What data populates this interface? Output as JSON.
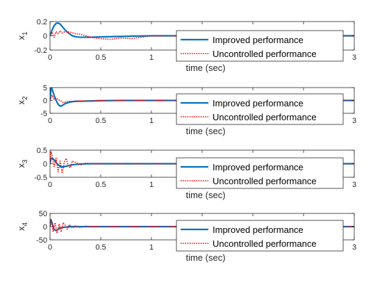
{
  "chart_data": [
    {
      "type": "line",
      "ylabel_base": "x",
      "ylabel_sub": "1",
      "xlabel": "time (sec)",
      "xlim": [
        0,
        3
      ],
      "ylim": [
        -0.2,
        0.2
      ],
      "xticks": [
        0,
        0.5,
        1,
        1.5,
        2,
        2.5,
        3
      ],
      "xtick_labels": [
        "0",
        "0.5",
        "1",
        "",
        "",
        "",
        "3"
      ],
      "yticks": [
        -0.2,
        0,
        0.2
      ],
      "ytick_labels": [
        "-0.2",
        "0",
        "0.2"
      ],
      "legend": {
        "location": "bottom-right",
        "entries": [
          "Improved performance",
          "Uncontrolled performance"
        ]
      },
      "series": [
        {
          "name": "Improved performance",
          "color": "#0072bd",
          "style": "solid",
          "x": [
            0,
            0.02,
            0.04,
            0.06,
            0.08,
            0.1,
            0.12,
            0.15,
            0.18,
            0.22,
            0.26,
            0.3,
            0.35,
            0.4,
            0.5,
            0.6,
            0.8,
            1.0,
            1.5,
            3
          ],
          "y": [
            0,
            0.08,
            0.14,
            0.175,
            0.18,
            0.165,
            0.13,
            0.08,
            0.04,
            0.0,
            -0.015,
            -0.02,
            -0.02,
            -0.02,
            -0.015,
            -0.012,
            -0.005,
            0.0,
            0.0,
            0.0
          ]
        },
        {
          "name": "Uncontrolled performance",
          "color": "#ff0000",
          "style": "dotted",
          "x": [
            0,
            0.02,
            0.04,
            0.06,
            0.08,
            0.1,
            0.12,
            0.15,
            0.2,
            0.25,
            0.3,
            0.35,
            0.4,
            0.5,
            0.6,
            0.7,
            0.8,
            0.9,
            1.0,
            1.5,
            3
          ],
          "y": [
            0,
            0.05,
            -0.02,
            0.06,
            0.03,
            0.07,
            0.04,
            0.06,
            0.05,
            0.03,
            0.02,
            0.0,
            -0.02,
            -0.04,
            -0.05,
            -0.03,
            -0.04,
            -0.02,
            0.0,
            0.0,
            0.0
          ]
        }
      ]
    },
    {
      "type": "line",
      "ylabel_base": "x",
      "ylabel_sub": "2",
      "xlabel": "time (sec)",
      "xlim": [
        0,
        3
      ],
      "ylim": [
        -5,
        5
      ],
      "xticks": [
        0,
        0.5,
        1,
        1.5,
        2,
        2.5,
        3
      ],
      "xtick_labels": [
        "0",
        "0.5",
        "1",
        "",
        "",
        "",
        "3"
      ],
      "yticks": [
        -5,
        0,
        5
      ],
      "ytick_labels": [
        "-5",
        "0",
        "5"
      ],
      "legend": {
        "location": "bottom-right",
        "entries": [
          "Improved performance",
          "Uncontrolled performance"
        ]
      },
      "series": [
        {
          "name": "Improved performance",
          "color": "#0072bd",
          "style": "solid",
          "x": [
            0,
            0.01,
            0.02,
            0.04,
            0.06,
            0.08,
            0.1,
            0.12,
            0.15,
            0.2,
            0.25,
            0.3,
            0.4,
            0.5,
            0.7,
            1.0,
            3
          ],
          "y": [
            0,
            4.8,
            4.5,
            2.0,
            0.0,
            -1.5,
            -2.2,
            -2.0,
            -1.2,
            -0.6,
            -0.3,
            -0.3,
            -0.2,
            -0.1,
            0.0,
            0.0,
            0.0
          ]
        },
        {
          "name": "Uncontrolled performance",
          "color": "#ff0000",
          "style": "dotted",
          "x": [
            0,
            0.02,
            0.04,
            0.06,
            0.08,
            0.1,
            0.13,
            0.16,
            0.2,
            0.25,
            0.3,
            0.4,
            0.5,
            0.7,
            1.0,
            3
          ],
          "y": [
            0,
            2.0,
            0.5,
            1.0,
            0.3,
            0.0,
            -0.8,
            -0.5,
            -0.3,
            -0.4,
            -0.2,
            -0.1,
            0.0,
            0.0,
            0.0,
            0.0
          ]
        }
      ]
    },
    {
      "type": "line",
      "ylabel_base": "x",
      "ylabel_sub": "3",
      "xlabel": "time (sec)",
      "xlim": [
        0,
        3
      ],
      "ylim": [
        -0.5,
        0.5
      ],
      "xticks": [
        0,
        0.5,
        1,
        1.5,
        2,
        2.5,
        3
      ],
      "xtick_labels": [
        "0",
        "0.5",
        "1",
        "",
        "",
        "",
        "3"
      ],
      "yticks": [
        -0.5,
        0,
        0.5
      ],
      "ytick_labels": [
        "-0.5",
        "0",
        "0.5"
      ],
      "legend": {
        "location": "bottom-right",
        "entries": [
          "Improved performance",
          "Uncontrolled performance"
        ]
      },
      "series": [
        {
          "name": "Improved performance",
          "color": "#0072bd",
          "style": "solid",
          "x": [
            0,
            0.01,
            0.03,
            0.05,
            0.07,
            0.1,
            0.13,
            0.17,
            0.22,
            0.3,
            0.4,
            0.6,
            1.0,
            3
          ],
          "y": [
            0,
            0.2,
            0.18,
            0.1,
            0.0,
            -0.1,
            -0.12,
            -0.08,
            -0.04,
            -0.01,
            0.0,
            0.0,
            0.0,
            0.0
          ]
        },
        {
          "name": "Uncontrolled performance",
          "color": "#ff0000",
          "style": "dotted",
          "x": [
            0,
            0.01,
            0.02,
            0.04,
            0.06,
            0.08,
            0.1,
            0.12,
            0.14,
            0.16,
            0.18,
            0.2,
            0.22,
            0.25,
            0.3,
            0.35,
            0.4,
            0.5,
            1.0,
            3
          ],
          "y": [
            0,
            0.45,
            0.3,
            -0.1,
            0.2,
            -0.3,
            0.1,
            -0.35,
            0.05,
            0.2,
            -0.1,
            -0.15,
            0.1,
            0.05,
            -0.05,
            0.02,
            0.0,
            0.0,
            0.0,
            0.0
          ]
        }
      ]
    },
    {
      "type": "line",
      "ylabel_base": "x",
      "ylabel_sub": "4",
      "xlabel": "time (sec)",
      "xlim": [
        0,
        3
      ],
      "ylim": [
        -50,
        50
      ],
      "xticks": [
        0,
        0.5,
        1,
        1.5,
        2,
        2.5,
        3
      ],
      "xtick_labels": [
        "0",
        "0.5",
        "1",
        "",
        "",
        "",
        "3"
      ],
      "yticks": [
        -50,
        0,
        50
      ],
      "ytick_labels": [
        "-50",
        "0",
        "50"
      ],
      "legend": {
        "location": "bottom-right",
        "entries": [
          "Improved performance",
          "Uncontrolled performance"
        ]
      },
      "series": [
        {
          "name": "Improved performance",
          "color": "#0072bd",
          "style": "solid",
          "x": [
            0,
            0.01,
            0.02,
            0.04,
            0.06,
            0.08,
            0.1,
            0.13,
            0.17,
            0.22,
            0.3,
            0.5,
            1.0,
            3
          ],
          "y": [
            0,
            25,
            15,
            -10,
            -15,
            -10,
            -5,
            -3,
            -1,
            0,
            0,
            0,
            0,
            0
          ]
        },
        {
          "name": "Uncontrolled performance",
          "color": "#ff0000",
          "style": "dotted",
          "x": [
            0,
            0.01,
            0.02,
            0.03,
            0.05,
            0.07,
            0.09,
            0.11,
            0.13,
            0.15,
            0.17,
            0.19,
            0.22,
            0.25,
            0.3,
            0.35,
            0.4,
            0.5,
            1.0,
            3
          ],
          "y": [
            0,
            30,
            10,
            -20,
            15,
            -25,
            10,
            -20,
            15,
            5,
            -10,
            8,
            -5,
            3,
            -3,
            2,
            0,
            0,
            0,
            0
          ]
        }
      ]
    }
  ]
}
